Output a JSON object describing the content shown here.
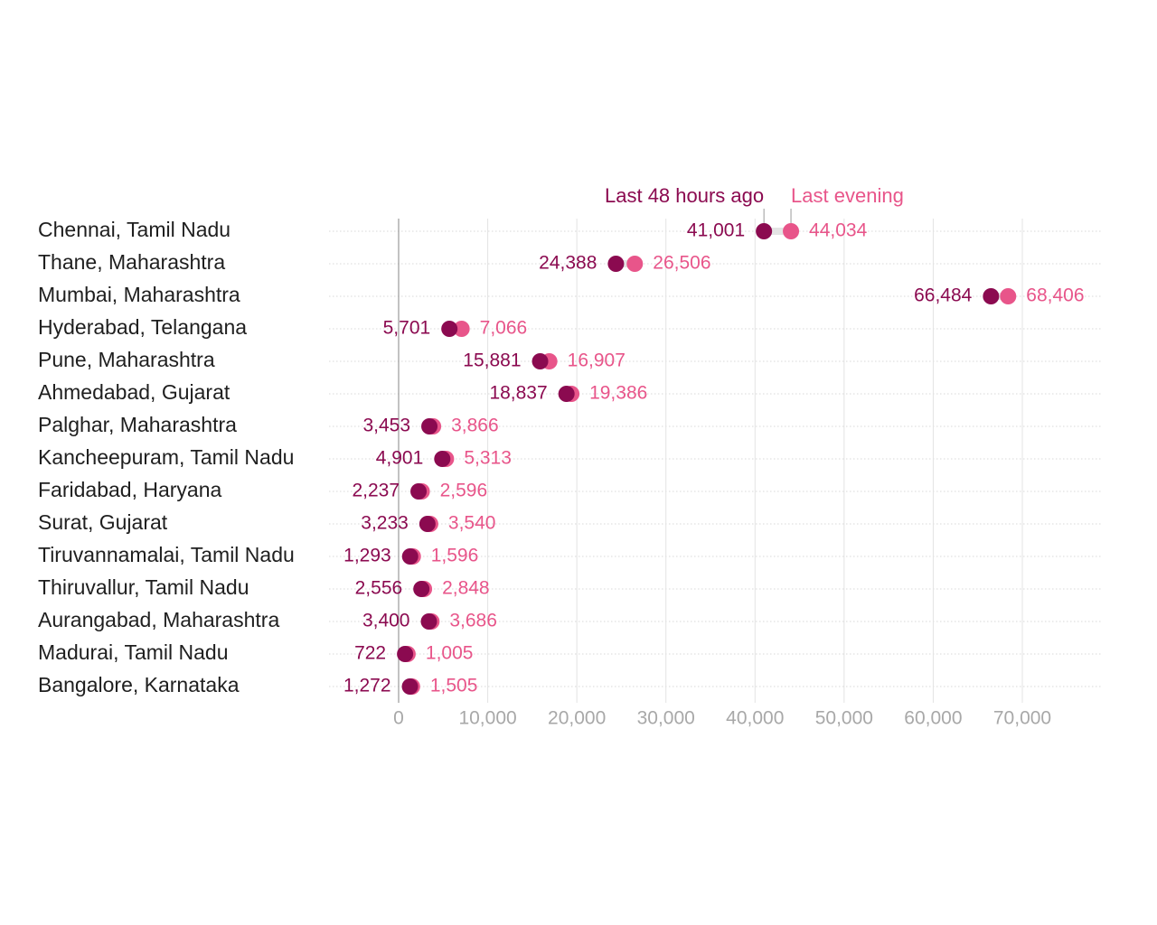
{
  "chart_data": {
    "type": "dot",
    "title": "",
    "xlabel": "",
    "ylabel": "",
    "xlim": [
      0,
      70000
    ],
    "x_ticks": [
      {
        "value": 0,
        "label": "0"
      },
      {
        "value": 10000,
        "label": "10,000"
      },
      {
        "value": 20000,
        "label": "20,000"
      },
      {
        "value": 30000,
        "label": "30,000"
      },
      {
        "value": 40000,
        "label": "40,000"
      },
      {
        "value": 50000,
        "label": "50,000"
      },
      {
        "value": 60000,
        "label": "60,000"
      },
      {
        "value": 70000,
        "label": "70,000"
      }
    ],
    "grid": true,
    "legend_placement": "top, annotating first row",
    "series": [
      {
        "name": "Last 48 hours ago",
        "color": "#8b0a50"
      },
      {
        "name": "Last evening",
        "color": "#e8558a"
      }
    ],
    "rows": [
      {
        "label": "Chennai, Tamil Nadu",
        "values": [
          41001,
          44034
        ],
        "texts": [
          "41,001",
          "44,034"
        ]
      },
      {
        "label": "Thane, Maharashtra",
        "values": [
          24388,
          26506
        ],
        "texts": [
          "24,388",
          "26,506"
        ]
      },
      {
        "label": "Mumbai, Maharashtra",
        "values": [
          66484,
          68406
        ],
        "texts": [
          "66,484",
          "68,406"
        ]
      },
      {
        "label": "Hyderabad, Telangana",
        "values": [
          5701,
          7066
        ],
        "texts": [
          "5,701",
          "7,066"
        ]
      },
      {
        "label": "Pune, Maharashtra",
        "values": [
          15881,
          16907
        ],
        "texts": [
          "15,881",
          "16,907"
        ]
      },
      {
        "label": "Ahmedabad, Gujarat",
        "values": [
          18837,
          19386
        ],
        "texts": [
          "18,837",
          "19,386"
        ]
      },
      {
        "label": "Palghar, Maharashtra",
        "values": [
          3453,
          3866
        ],
        "texts": [
          "3,453",
          "3,866"
        ]
      },
      {
        "label": "Kancheepuram, Tamil Nadu",
        "values": [
          4901,
          5313
        ],
        "texts": [
          "4,901",
          "5,313"
        ]
      },
      {
        "label": "Faridabad, Haryana",
        "values": [
          2237,
          2596
        ],
        "texts": [
          "2,237",
          "2,596"
        ]
      },
      {
        "label": "Surat, Gujarat",
        "values": [
          3233,
          3540
        ],
        "texts": [
          "3,233",
          "3,540"
        ]
      },
      {
        "label": "Tiruvannamalai, Tamil Nadu",
        "values": [
          1293,
          1596
        ],
        "texts": [
          "1,293",
          "1,596"
        ]
      },
      {
        "label": "Thiruvallur, Tamil Nadu",
        "values": [
          2556,
          2848
        ],
        "texts": [
          "2,556",
          "2,848"
        ]
      },
      {
        "label": "Aurangabad, Maharashtra",
        "values": [
          3400,
          3686
        ],
        "texts": [
          "3,400",
          "3,686"
        ]
      },
      {
        "label": "Madurai, Tamil Nadu",
        "values": [
          722,
          1005
        ],
        "texts": [
          "722",
          "1,005"
        ]
      },
      {
        "label": "Bangalore, Karnataka",
        "values": [
          1272,
          1505
        ],
        "texts": [
          "1,272",
          "1,505"
        ]
      }
    ]
  }
}
